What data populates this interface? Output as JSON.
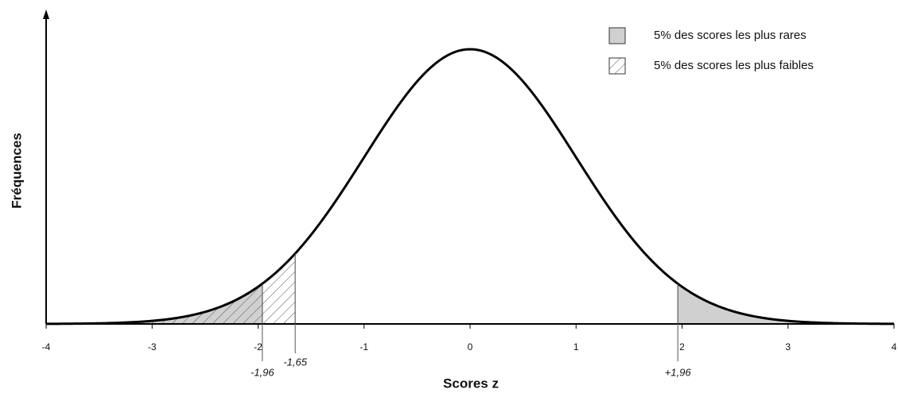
{
  "chart_data": {
    "type": "normal-curve",
    "distribution": "standard-normal",
    "x_label": "Scores z",
    "y_label": "Fréquences",
    "xlim": [
      -4,
      4
    ],
    "xticks": [
      -4,
      -3,
      -2,
      -1,
      0,
      1,
      2,
      3,
      4
    ],
    "markers": [
      {
        "value": -1.96,
        "label": "-1,96"
      },
      {
        "value": -1.65,
        "label": "-1,65"
      },
      {
        "value": 1.96,
        "label": "+1,96"
      }
    ],
    "series": [
      {
        "name": "5% des scores les plus rares",
        "color": "#d0d0d0",
        "fill": "solid",
        "below": -1.96,
        "above": 1.96
      },
      {
        "name": "5% des scores les plus faibles",
        "color": "#555555",
        "fill": "hatch",
        "below": -1.65
      }
    ],
    "legend": "top-right"
  }
}
